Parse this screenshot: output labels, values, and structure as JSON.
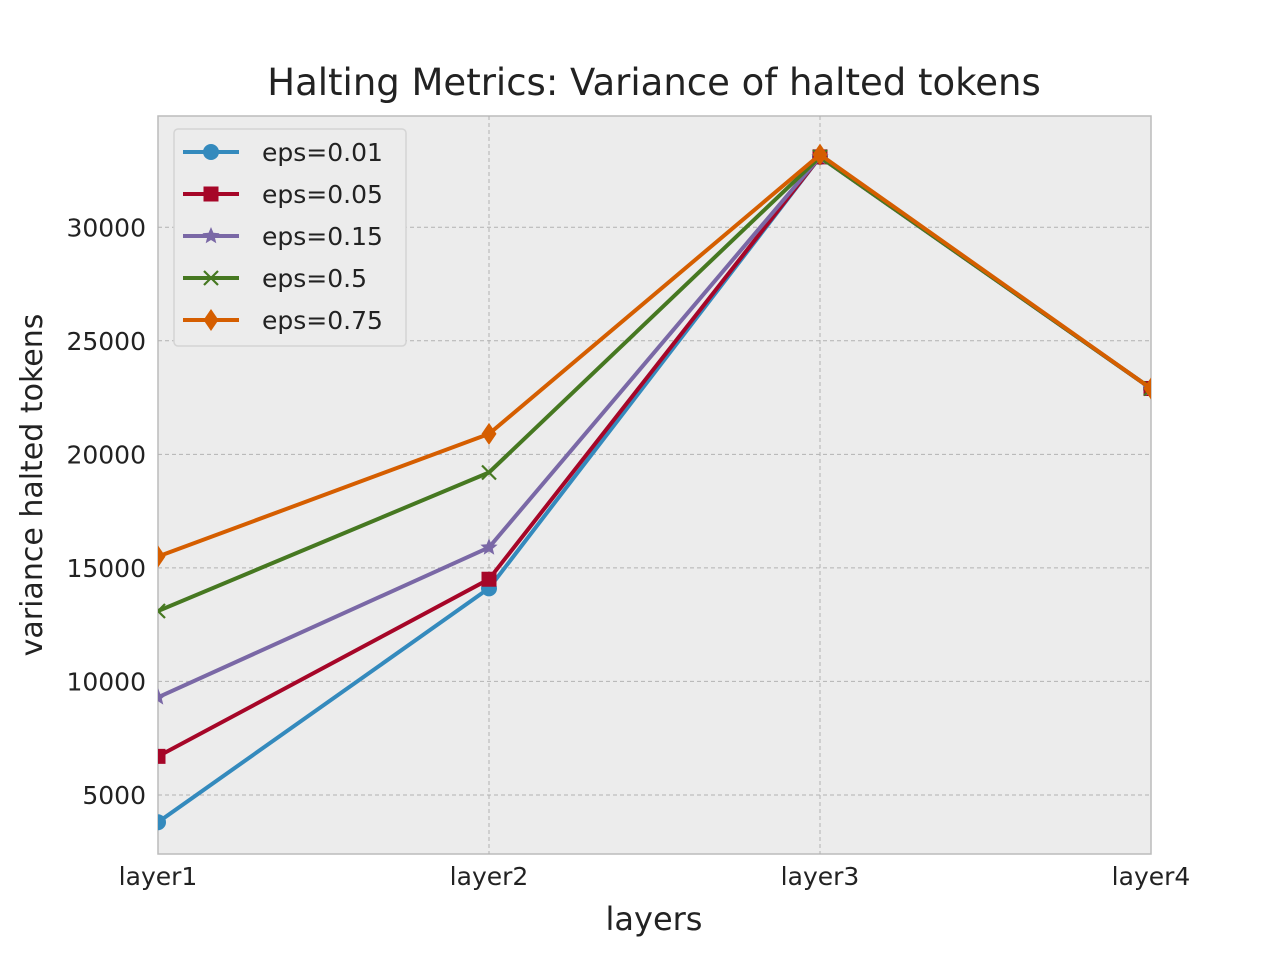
{
  "chart_data": {
    "type": "line",
    "title": "Halting Metrics: Variance of halted tokens",
    "xlabel": "layers",
    "ylabel": "variance halted tokens",
    "categories": [
      "layer1",
      "layer2",
      "layer3",
      "layer4"
    ],
    "ylim": [
      2400,
      34900
    ],
    "yticks": [
      5000,
      10000,
      15000,
      20000,
      25000,
      30000
    ],
    "grid": true,
    "legend_position": "upper-left",
    "background_color": "#ececec",
    "series": [
      {
        "name": "eps=0.01",
        "color": "#348abd",
        "marker": "circle",
        "values": [
          3800,
          14100,
          33100,
          22900
        ]
      },
      {
        "name": "eps=0.05",
        "color": "#a60628",
        "marker": "square",
        "values": [
          6700,
          14500,
          33100,
          22900
        ]
      },
      {
        "name": "eps=0.15",
        "color": "#7a68a6",
        "marker": "star",
        "values": [
          9300,
          15900,
          33100,
          22900
        ]
      },
      {
        "name": "eps=0.5",
        "color": "#467821",
        "marker": "x",
        "values": [
          13100,
          19200,
          33100,
          22900
        ]
      },
      {
        "name": "eps=0.75",
        "color": "#d55e00",
        "marker": "diamond",
        "values": [
          15500,
          20900,
          33200,
          22900
        ]
      }
    ]
  }
}
